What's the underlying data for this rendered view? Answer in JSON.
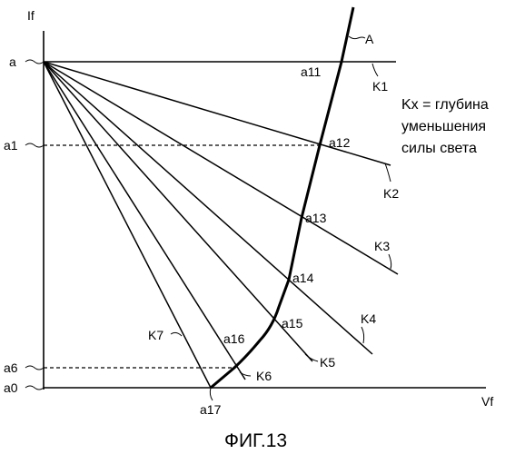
{
  "axes": {
    "y_label": "If",
    "x_label": "Vf",
    "y_ticks": [
      "a",
      "a1",
      "a6",
      "a0"
    ]
  },
  "curve_label": "A",
  "lines": [
    "K1",
    "K2",
    "K3",
    "K4",
    "K5",
    "K6",
    "K7"
  ],
  "points": [
    "a11",
    "a12",
    "a13",
    "a14",
    "a15",
    "a16",
    "a17"
  ],
  "note": [
    "Kx = глубина",
    "уменьшения",
    "силы света"
  ],
  "caption": "ФИГ.13"
}
